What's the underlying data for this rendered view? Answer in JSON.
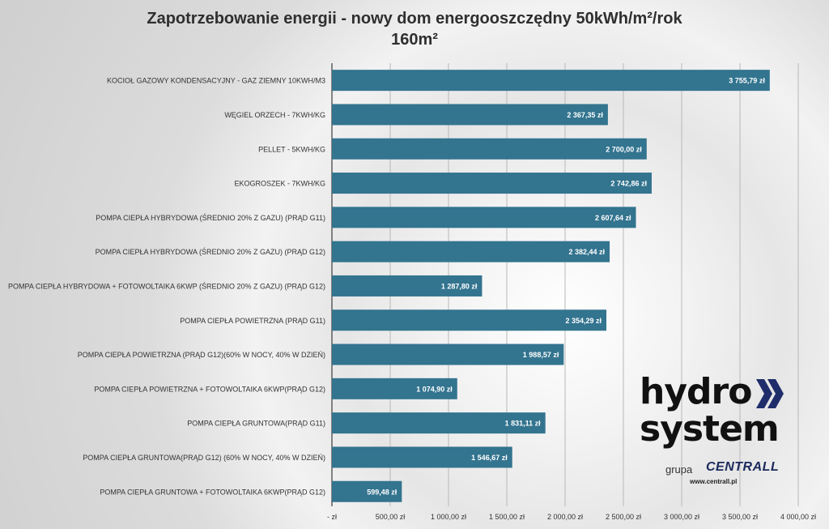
{
  "title_line1": "Zapotrzebowanie energii - nowy dom energooszczędny 50kWh/m²/rok",
  "title_line2": "160m²",
  "chart_data": {
    "type": "bar",
    "orientation": "horizontal",
    "categories": [
      "KOCIOŁ GAZOWY KONDENSACYJNY - GAZ ZIEMNY 10KWH/M3",
      "WĘGIEL ORZECH - 7KWH/KG",
      "PELLET - 5KWH/KG",
      "EKOGROSZEK - 7KWH/KG",
      "POMPA CIEPŁA HYBRYDOWA (ŚREDNIO 20%  Z GAZU) (PRĄD G11)",
      "POMPA CIEPŁA HYBRYDOWA (ŚREDNIO 20%  Z GAZU) (PRĄD G12)",
      "POMPA CIEPŁA HYBRYDOWA + FOTOWOLTAIKA 6KWP (ŚREDNIO 20% Z GAZU) (PRĄD G12)",
      "POMPA CIEPŁA POWIETRZNA (PRĄD G11)",
      "POMPA CIEPŁA POWIETRZNA (PRĄD G12)(60% W NOCY, 40% W DZIEŃ)",
      "POMPA CIEPŁA POWIETRZNA + FOTOWOLTAIKA 6KWP(PRĄD G12)",
      "POMPA CIEPŁA GRUNTOWA(PRĄD G11)",
      "POMPA CIEPŁA GRUNTOWA(PRĄD G12) (60% W NOCY, 40% W DZIEŃ)",
      "POMPA CIEPŁA GRUNTOWA + FOTOWOLTAIKA 6KWP(PRĄD G12)"
    ],
    "values": [
      3755.79,
      2367.35,
      2700.0,
      2742.86,
      2607.64,
      2382.44,
      1287.8,
      2354.29,
      1988.57,
      1074.9,
      1831.11,
      1546.67,
      599.48
    ],
    "value_labels": [
      "3 755,79 zł",
      "2 367,35 zł",
      "2 700,00 zł",
      "2 742,86 zł",
      "2 607,64 zł",
      "2 382,44 zł",
      "1 287,80 zł",
      "2 354,29 zł",
      "1 988,57 zł",
      "1 074,90 zł",
      "1 831,11 zł",
      "1 546,67 zł",
      "599,48 zł"
    ],
    "xlim": [
      0,
      4000
    ],
    "x_ticks": [
      0,
      500,
      1000,
      1500,
      2000,
      2500,
      3000,
      3500,
      4000
    ],
    "x_tick_labels": [
      "-  zł",
      "500,00 zł",
      "1 000,00 zł",
      "1 500,00 zł",
      "2 000,00 zł",
      "2 500,00 zł",
      "3 000,00 zł",
      "3 500,00 zł",
      "4 000,00 zł"
    ],
    "bar_color": "#33748f",
    "grid": true
  },
  "logo": {
    "line1": "hydro",
    "line2": "system",
    "grupa": "grupa",
    "brand": "CENTRALL",
    "url": "www.centrall.pl"
  }
}
